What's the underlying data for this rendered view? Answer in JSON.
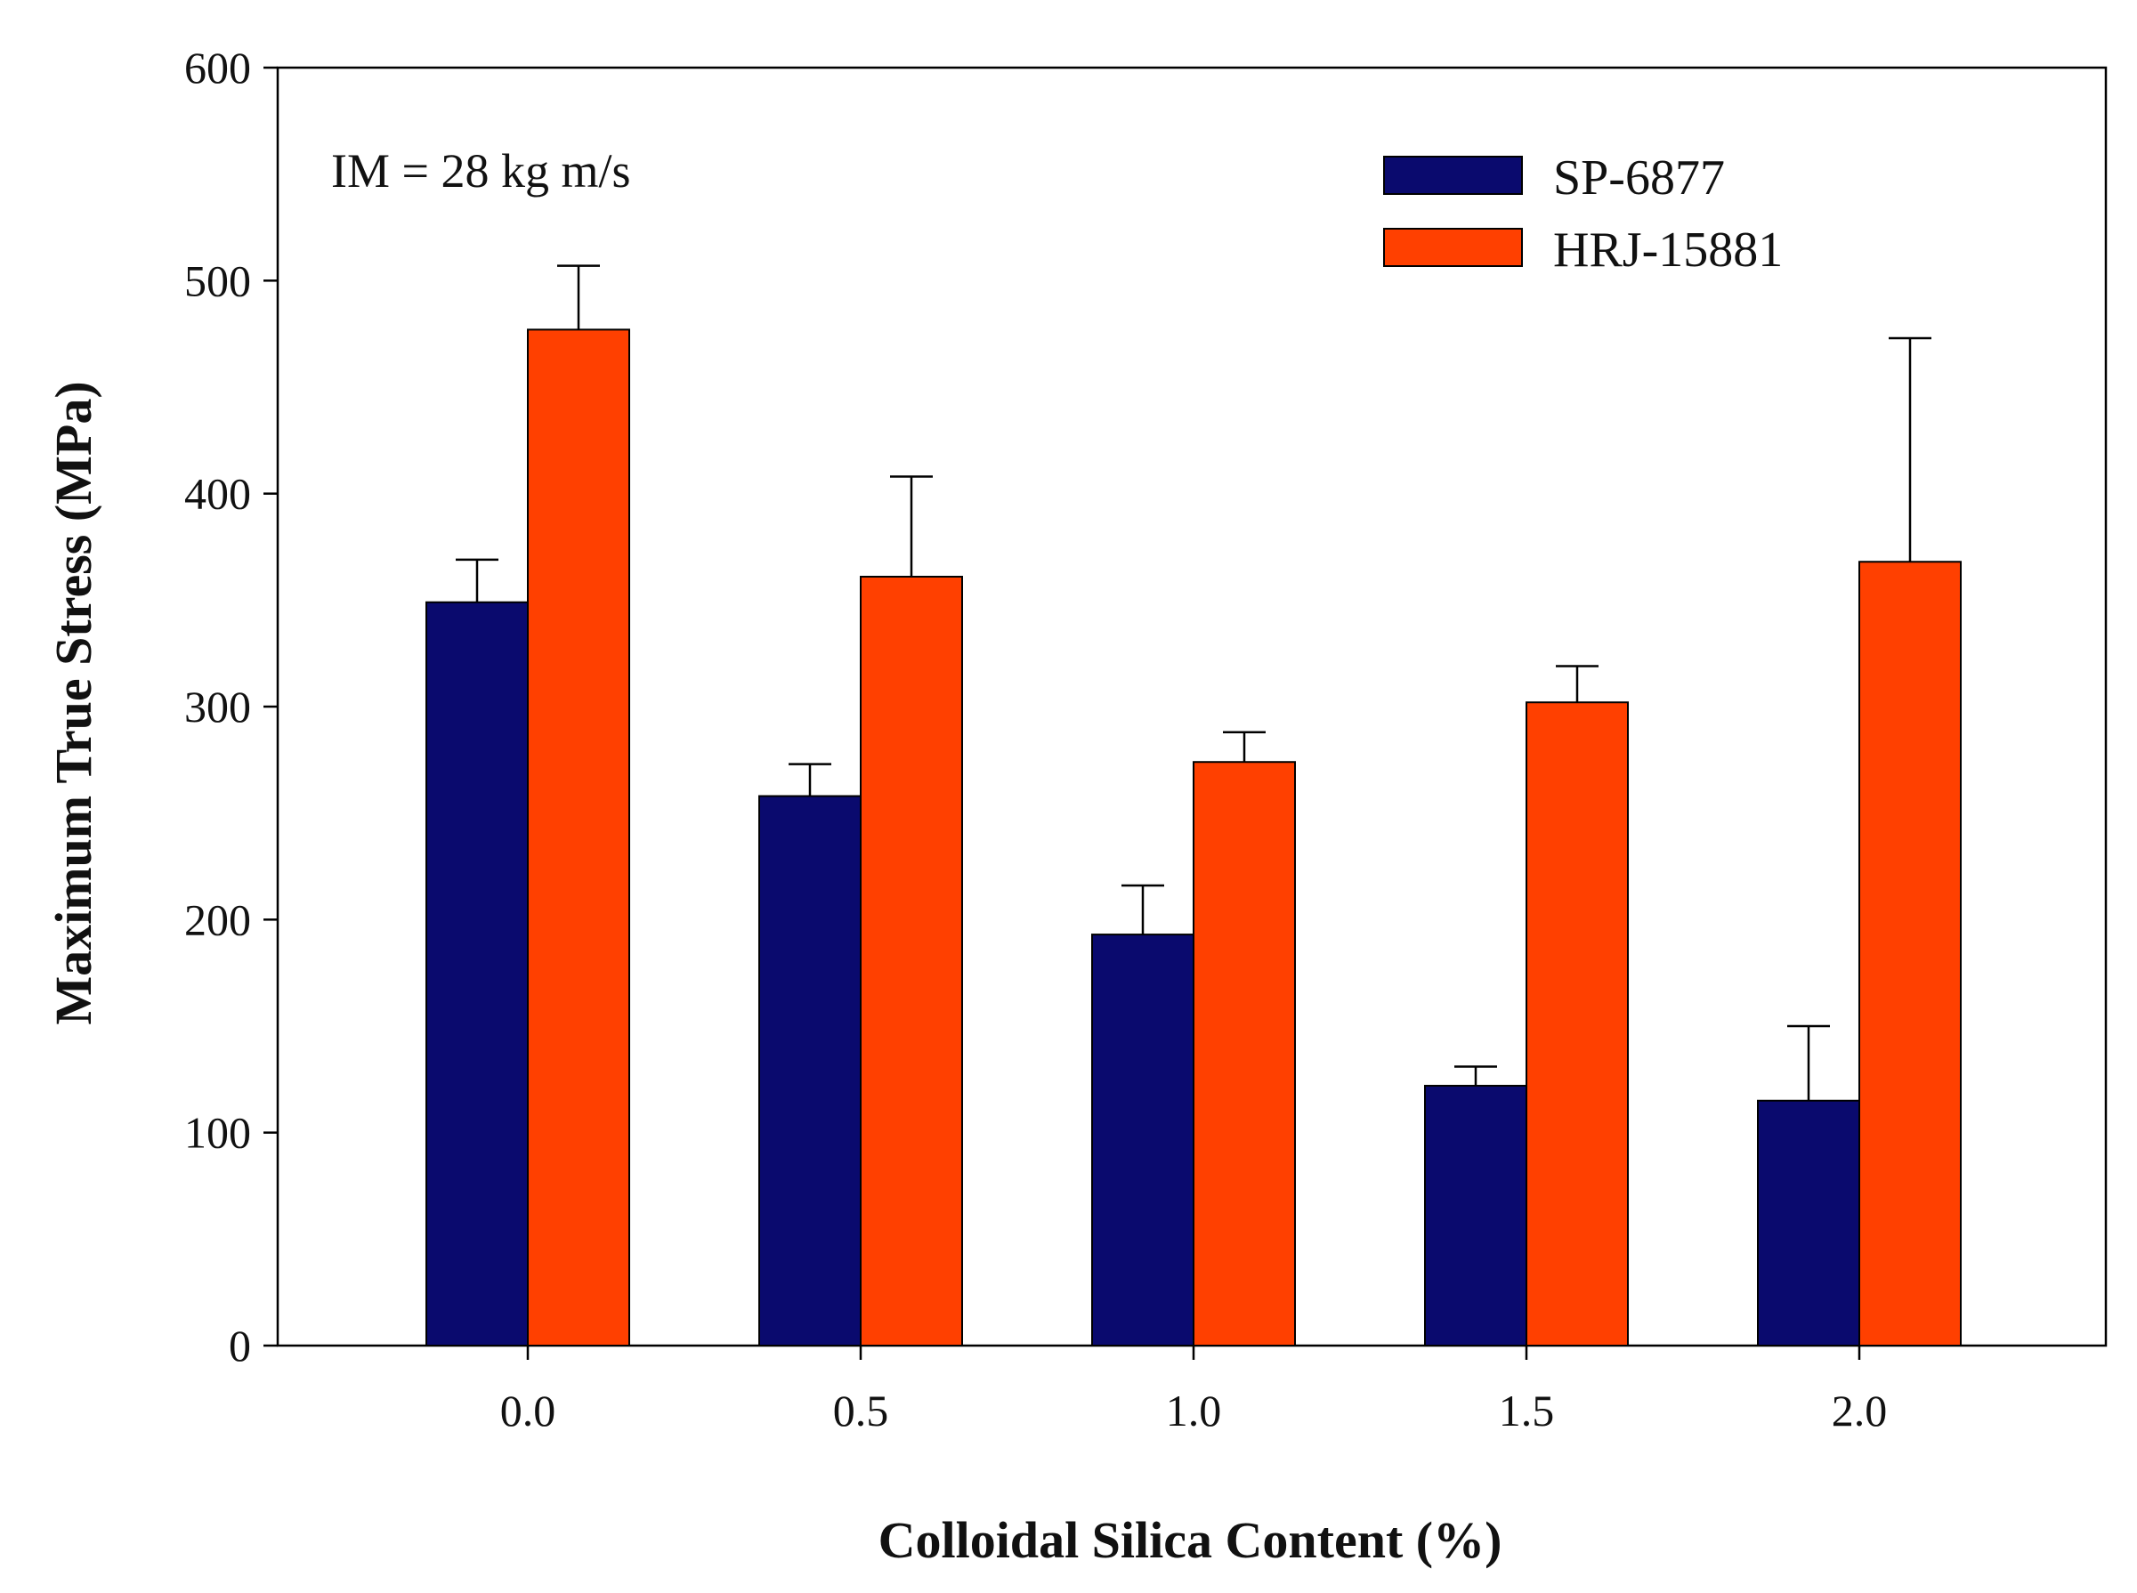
{
  "chart_data": {
    "type": "bar",
    "title": "",
    "xlabel": "Colloidal Silica Content (%)",
    "ylabel": "Maximum True Stress (MPa)",
    "categories": [
      "0.0",
      "0.5",
      "1.0",
      "1.5",
      "2.0"
    ],
    "ylim": [
      0,
      600
    ],
    "yticks": [
      0,
      100,
      200,
      300,
      400,
      500,
      600
    ],
    "grid": false,
    "legend_position": "top-right",
    "annotation": "IM = 28 kg m/s",
    "series": [
      {
        "name": "SP-6877",
        "color": "#0a0a6e",
        "values": [
          349,
          258,
          193,
          122,
          115
        ],
        "errors": [
          20,
          15,
          23,
          9,
          35
        ]
      },
      {
        "name": "HRJ-15881",
        "color": "#ff4000",
        "values": [
          477,
          361,
          274,
          302,
          368
        ],
        "errors": [
          30,
          47,
          14,
          17,
          105
        ]
      }
    ]
  }
}
